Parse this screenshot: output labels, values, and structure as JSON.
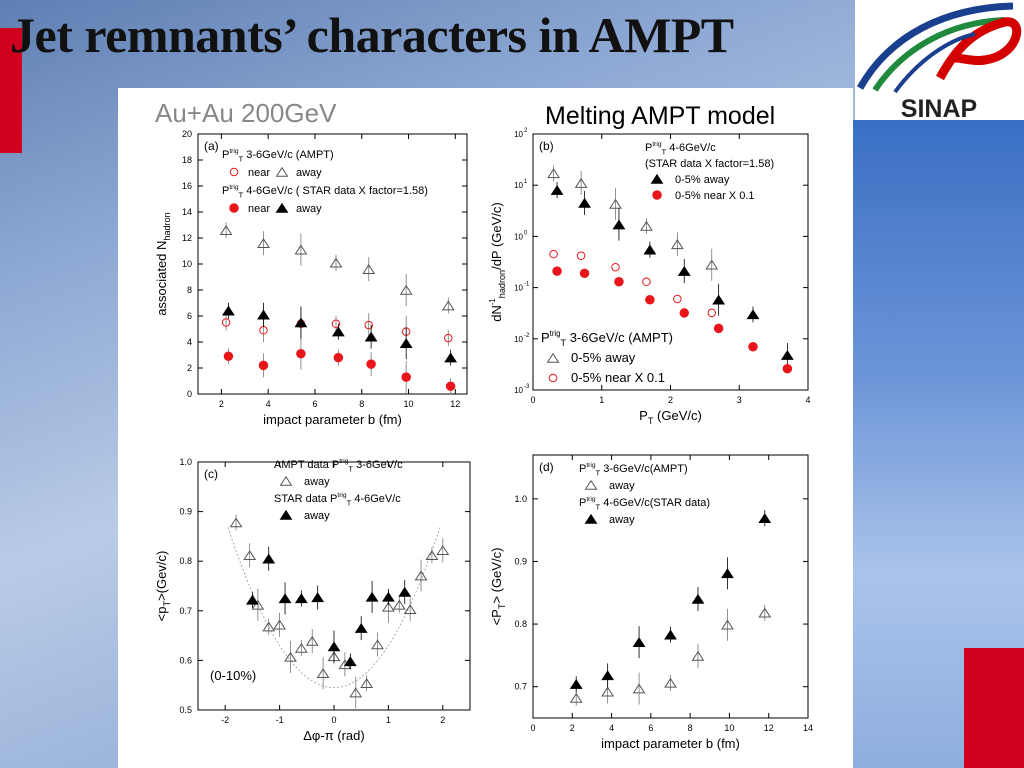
{
  "slide": {
    "title": "Jet remnants’ characters in AMPT",
    "system_label": "Au+Au 200GeV",
    "model_label": "Melting AMPT model",
    "logo_text": "SINAP",
    "colors": {
      "accent_red": "#d0001f",
      "logo_blue": "#1a3f8f",
      "logo_green": "#1f8a3b",
      "logo_red": "#d40000",
      "marker_red": "#e8161b"
    }
  },
  "chart_data": [
    {
      "type": "scatter",
      "panel_label": "(a)",
      "xlabel": "impact parameter b (fm)",
      "ylabel": "associated N",
      "ylabel_sub": "hadron",
      "xlim": [
        1,
        12.5
      ],
      "ylim": [
        0,
        20
      ],
      "xticks": [
        2,
        4,
        6,
        8,
        10,
        12
      ],
      "yticks": [
        0,
        2,
        4,
        6,
        8,
        10,
        12,
        14,
        16,
        18,
        20
      ],
      "legend": [
        {
          "kind": "header",
          "text": "P",
          "sub": "T",
          "sup": "trig",
          "rest": " 3-6GeV/c (AMPT)"
        },
        {
          "kind": "pair",
          "items": [
            {
              "marker": "circle-open",
              "text": "near"
            },
            {
              "marker": "tri-open",
              "text": "away"
            }
          ]
        },
        {
          "kind": "header",
          "text": "P",
          "sub": "T",
          "sup": "trig",
          "rest": " 4-6GeV/c ( STAR data X factor=1.58)"
        },
        {
          "kind": "pair",
          "items": [
            {
              "marker": "circle-filled",
              "text": "near"
            },
            {
              "marker": "tri-filled",
              "text": "away"
            }
          ]
        }
      ],
      "series": [
        {
          "name": "near",
          "marker": "circle-open",
          "x": [
            2.2,
            3.8,
            5.4,
            6.9,
            8.3,
            9.9,
            11.7
          ],
          "y": [
            5.5,
            4.9,
            5.4,
            5.4,
            5.3,
            4.8,
            4.3
          ]
        },
        {
          "name": "away",
          "marker": "tri-open",
          "x": [
            2.2,
            3.8,
            5.4,
            6.9,
            8.3,
            9.9,
            11.7
          ],
          "y": [
            12.6,
            11.6,
            11.1,
            10.1,
            9.6,
            8.0,
            6.8
          ]
        },
        {
          "name": "near",
          "marker": "circle-filled",
          "x": [
            2.3,
            3.8,
            5.4,
            7.0,
            8.4,
            9.9,
            11.8
          ],
          "y": [
            2.9,
            2.2,
            3.1,
            2.8,
            2.3,
            1.3,
            0.6
          ]
        },
        {
          "name": "away",
          "marker": "tri-filled",
          "x": [
            2.3,
            3.8,
            5.4,
            7.0,
            8.4,
            9.9,
            11.8
          ],
          "y": [
            6.4,
            6.1,
            5.5,
            4.8,
            4.4,
            3.9,
            2.8
          ]
        }
      ]
    },
    {
      "type": "scatter",
      "panel_label": "(b)",
      "xlabel": "P",
      "xlabel_sub": "T",
      "xlabel_rest": " (GeV/c)",
      "ylabel": "dN",
      "ylabel_sub": "hadron",
      "ylabel_rest": "/dP (GeV/c)",
      "ylabel_sup": "-1",
      "xlim": [
        0,
        4
      ],
      "ylim": [
        -3,
        2
      ],
      "log_y": true,
      "xticks": [
        0,
        1,
        2,
        3,
        4
      ],
      "yticks": [
        -3,
        -2,
        -1,
        0,
        1,
        2
      ],
      "ytick_labels": [
        "10",
        "10",
        "10",
        "10",
        "10",
        "10"
      ],
      "ytick_sups": [
        "-3",
        "-2",
        "-1",
        "0",
        "1",
        "2"
      ],
      "legend_top": [
        {
          "kind": "header",
          "text": "P",
          "sub": "T",
          "sup": "trig",
          "rest": " 4-6GeV/c"
        },
        {
          "kind": "line",
          "text": "(STAR data X factor=1.58)"
        },
        {
          "kind": "item",
          "marker": "tri-filled",
          "text": "0-5% away"
        },
        {
          "kind": "item",
          "marker": "circle-filled",
          "text": "0-5% near  X 0.1"
        }
      ],
      "legend_bottom": [
        {
          "kind": "header",
          "text": "P",
          "sub": "T",
          "sup": "trig",
          "rest": " 3-6GeV/c (AMPT)"
        },
        {
          "kind": "item",
          "marker": "tri-open",
          "text": "0-5% away"
        },
        {
          "kind": "item",
          "marker": "circle-open",
          "text": "0-5% near  X 0.1"
        }
      ],
      "series": [
        {
          "name": "0-5% away",
          "marker": "tri-open",
          "x": [
            0.3,
            0.7,
            1.2,
            1.65,
            2.1,
            2.6
          ],
          "y": [
            17,
            11,
            4.3,
            1.6,
            0.7,
            0.28
          ]
        },
        {
          "name": "0-5% near  X 0.1",
          "marker": "circle-open",
          "x": [
            0.3,
            0.7,
            1.2,
            1.65,
            2.1,
            2.6
          ],
          "y": [
            0.45,
            0.42,
            0.25,
            0.13,
            0.06,
            0.032
          ]
        },
        {
          "name": "0-5% away",
          "marker": "tri-filled",
          "x": [
            0.35,
            0.75,
            1.25,
            1.7,
            2.2,
            2.7,
            3.2,
            3.7
          ],
          "y": [
            8,
            4.5,
            1.7,
            0.55,
            0.21,
            0.058,
            0.03,
            0.0048
          ]
        },
        {
          "name": "0-5% near  X 0.1",
          "marker": "circle-filled",
          "x": [
            0.35,
            0.75,
            1.25,
            1.7,
            2.2,
            2.7,
            3.2,
            3.7
          ],
          "y": [
            0.21,
            0.19,
            0.13,
            0.058,
            0.032,
            0.016,
            0.007,
            0.0026
          ]
        }
      ]
    },
    {
      "type": "scatter",
      "panel_label": "(c)",
      "xlabel": "Δφ-π  (rad)",
      "ylabel": "<p",
      "ylabel_sub": "T",
      "ylabel_rest": ">(Gev/c)",
      "xlim": [
        -2.5,
        2.5
      ],
      "ylim": [
        0.5,
        1.0
      ],
      "xticks": [
        -2,
        -1,
        0,
        1,
        2
      ],
      "yticks": [
        0.5,
        0.6,
        0.7,
        0.8,
        0.9,
        1.0
      ],
      "ytick_labels": [
        "0.5",
        "0.6",
        "0.7",
        "0.8",
        "0.9",
        "1.0"
      ],
      "annotation": "(0-10%)",
      "legend": [
        {
          "kind": "header",
          "text": "AMPT data P",
          "sub": "T",
          "sup": "trig",
          "rest": " 3-6GeV/c"
        },
        {
          "kind": "item",
          "marker": "tri-open",
          "text": "away"
        },
        {
          "kind": "header",
          "text": "STAR data P",
          "sub": "T",
          "sup": "trig",
          "rest": " 4-6GeV/c"
        },
        {
          "kind": "item",
          "marker": "tri-filled",
          "text": "away"
        }
      ],
      "series": [
        {
          "name": "away",
          "marker": "tri-open",
          "x": [
            -1.8,
            -1.55,
            -1.4,
            -1.2,
            -1.0,
            -0.8,
            -0.6,
            -0.4,
            -0.2,
            0.0,
            0.2,
            0.4,
            0.6,
            0.8,
            1.0,
            1.2,
            1.4,
            1.6,
            1.8,
            2.0
          ],
          "y": [
            0.878,
            0.812,
            0.712,
            0.668,
            0.672,
            0.607,
            0.625,
            0.639,
            0.574,
            0.608,
            0.592,
            0.535,
            0.554,
            0.632,
            0.708,
            0.712,
            0.703,
            0.771,
            0.812,
            0.822
          ]
        },
        {
          "name": "away",
          "marker": "tri-filled",
          "x": [
            -1.5,
            -1.2,
            -0.9,
            -0.6,
            -0.3,
            0.0,
            0.3,
            0.5,
            0.7,
            1.0,
            1.3
          ],
          "y": [
            0.722,
            0.805,
            0.725,
            0.725,
            0.727,
            0.628,
            0.598,
            0.665,
            0.728,
            0.728,
            0.738
          ]
        }
      ]
    },
    {
      "type": "scatter",
      "panel_label": "(d)",
      "xlabel": "impact parameter b (fm)",
      "ylabel": "<P",
      "ylabel_sub": "T",
      "ylabel_rest": "> (GeV/c)",
      "xlim": [
        0,
        14
      ],
      "ylim": [
        0.65,
        1.07
      ],
      "xticks": [
        0,
        2,
        4,
        6,
        8,
        10,
        12,
        14
      ],
      "yticks": [
        0.7,
        0.8,
        0.9,
        1.0
      ],
      "ytick_labels": [
        "0.7",
        "0.8",
        "0.9",
        "1.0"
      ],
      "legend": [
        {
          "kind": "header",
          "text": "P",
          "sub": "T",
          "sup": "trig",
          "rest": " 3-6GeV/c(AMPT)"
        },
        {
          "kind": "item",
          "marker": "tri-open",
          "text": "away"
        },
        {
          "kind": "header",
          "text": "P",
          "sub": "T",
          "sup": "trig",
          "rest": " 4-6GeV/c(STAR data)"
        },
        {
          "kind": "item",
          "marker": "tri-filled",
          "text": "away"
        }
      ],
      "series": [
        {
          "name": "away",
          "marker": "tri-open",
          "x": [
            2.2,
            3.8,
            5.4,
            7.0,
            8.4,
            9.9,
            11.8
          ],
          "y": [
            0.682,
            0.692,
            0.697,
            0.706,
            0.749,
            0.799,
            0.818
          ]
        },
        {
          "name": "away",
          "marker": "tri-filled",
          "x": [
            2.2,
            3.8,
            5.4,
            7.0,
            8.4,
            9.9,
            11.8
          ],
          "y": [
            0.704,
            0.718,
            0.771,
            0.783,
            0.84,
            0.881,
            0.969
          ]
        }
      ]
    }
  ]
}
